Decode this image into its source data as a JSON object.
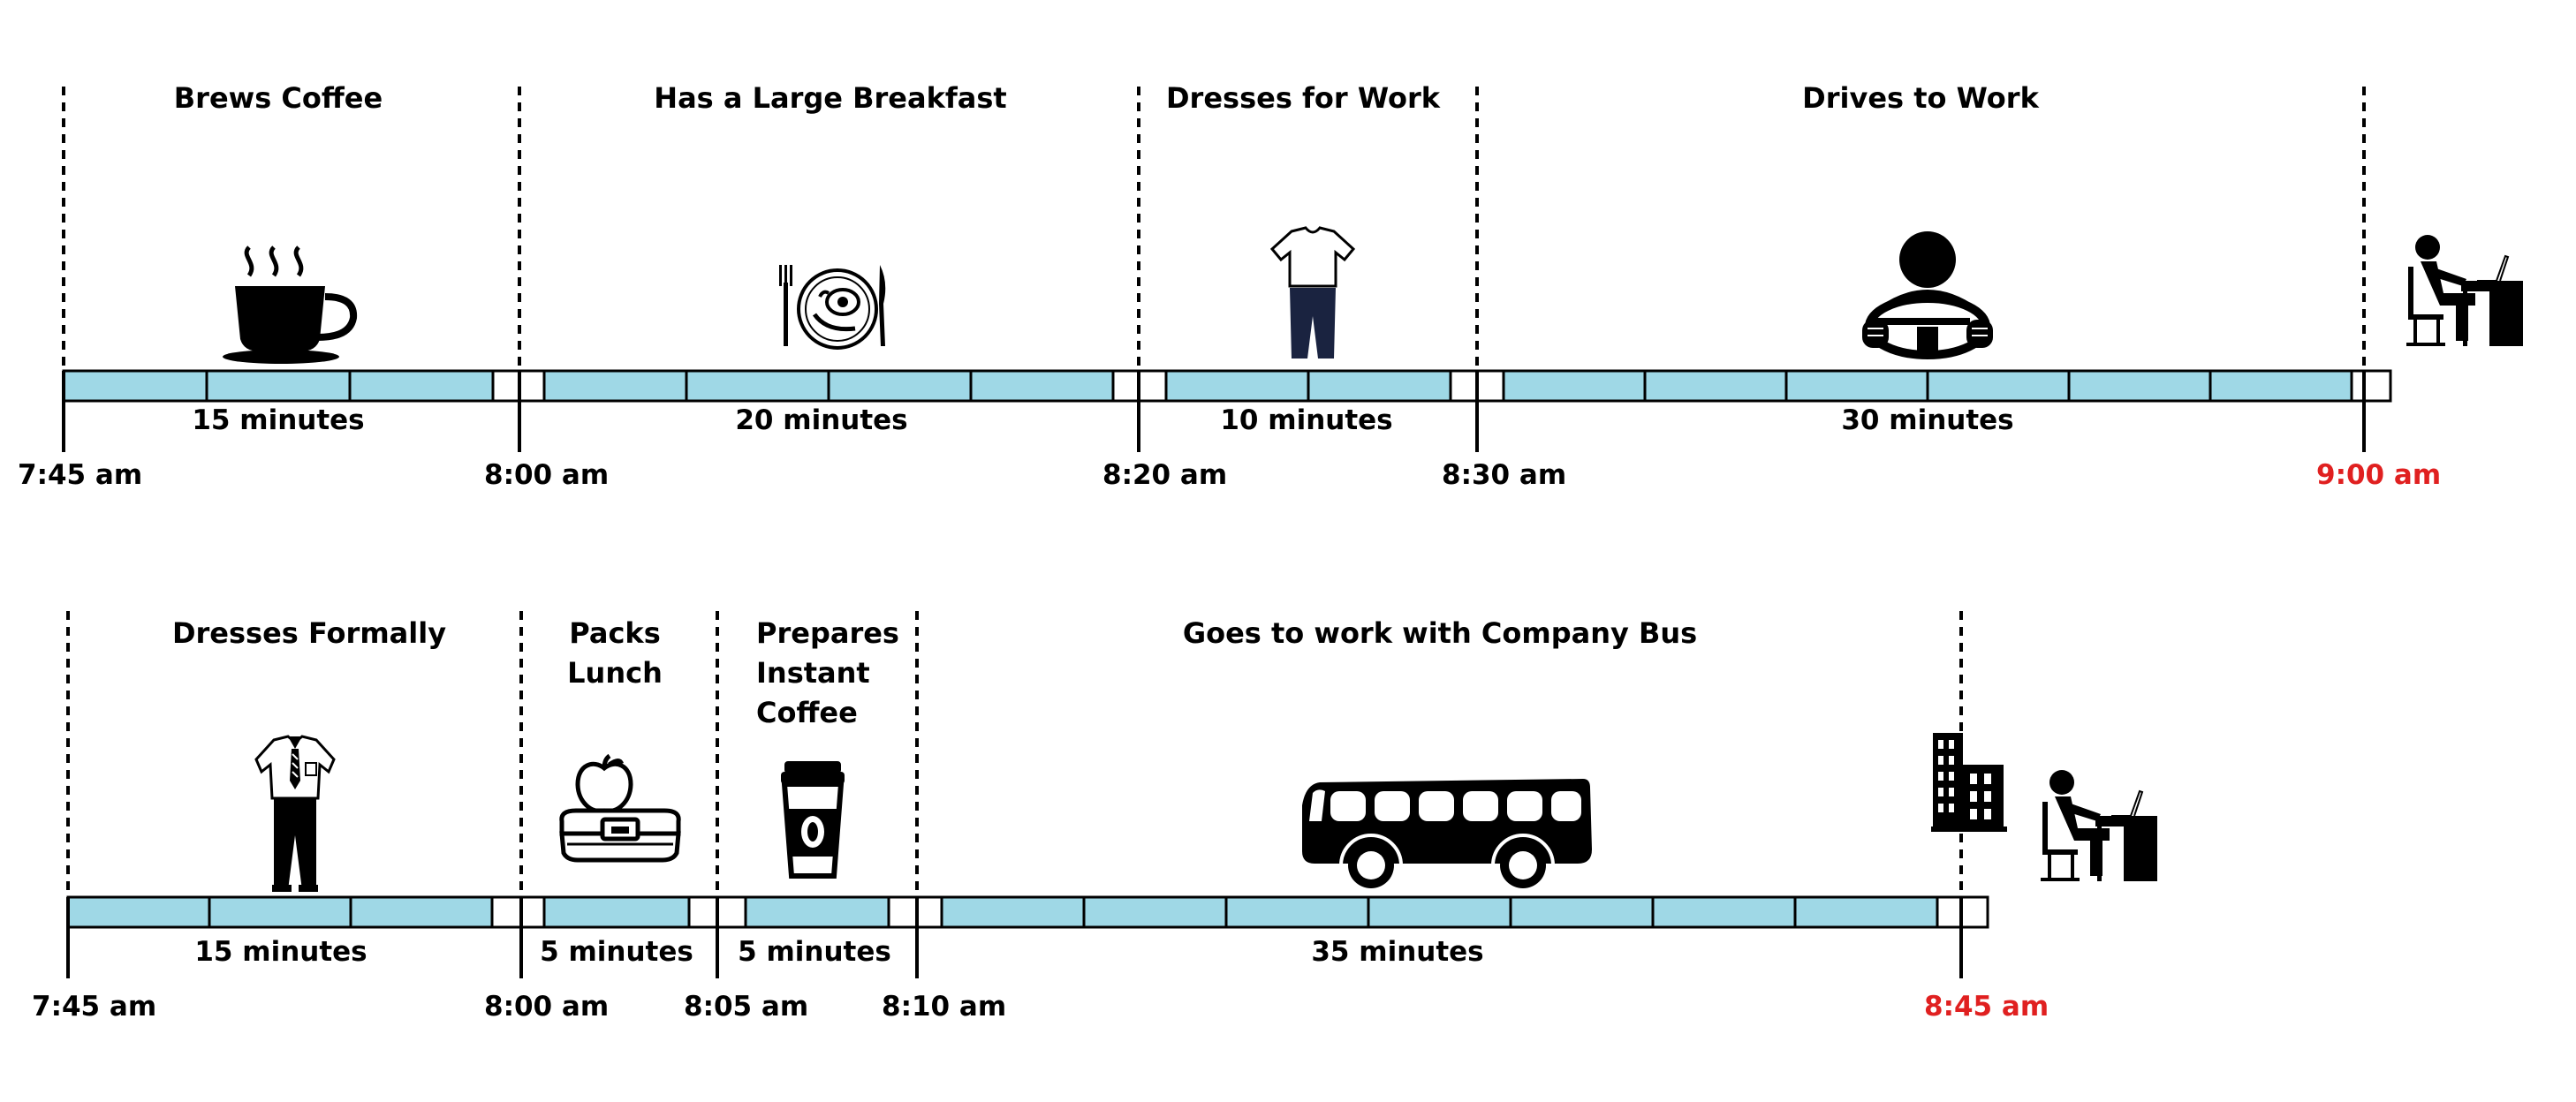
{
  "colors": {
    "segment": "#9fd8e6",
    "gap": "#ffffff",
    "arrival": "#e02020",
    "line": "#000000"
  },
  "timeline1": {
    "activities": [
      {
        "label": [
          "Brews Coffee"
        ],
        "duration": "15 minutes",
        "icon": "coffee-cup-icon"
      },
      {
        "label": [
          "Has a Large Breakfast"
        ],
        "duration": "20 minutes",
        "icon": "breakfast-plate-icon"
      },
      {
        "label": [
          "Dresses for Work"
        ],
        "duration": "10 minutes",
        "icon": "casual-clothes-icon"
      },
      {
        "label": [
          "Drives to Work"
        ],
        "duration": "30 minutes",
        "icon": "driver-steering-wheel-icon"
      }
    ],
    "times": [
      "7:45 am",
      "8:00 am",
      "8:20 am",
      "8:30 am",
      "9:00 am"
    ],
    "arrival_icon": "person-at-desk-icon"
  },
  "timeline2": {
    "activities": [
      {
        "label": [
          "Dresses Formally"
        ],
        "duration": "15 minutes",
        "icon": "formal-clothes-icon"
      },
      {
        "label": [
          "Packs",
          "Lunch"
        ],
        "duration": "5 minutes",
        "icon": "lunch-box-icon"
      },
      {
        "label": [
          "Prepares",
          "Instant",
          "Coffee"
        ],
        "duration": "5 minutes",
        "icon": "coffee-to-go-icon"
      },
      {
        "label": [
          "Goes to work with Company Bus"
        ],
        "duration": "35 minutes",
        "icon": "bus-icon"
      }
    ],
    "times": [
      "7:45 am",
      "8:00 am",
      "8:05 am",
      "8:10 am",
      "8:45 am"
    ],
    "arrival_icons": [
      "office-building-icon",
      "person-at-desk-icon"
    ]
  }
}
